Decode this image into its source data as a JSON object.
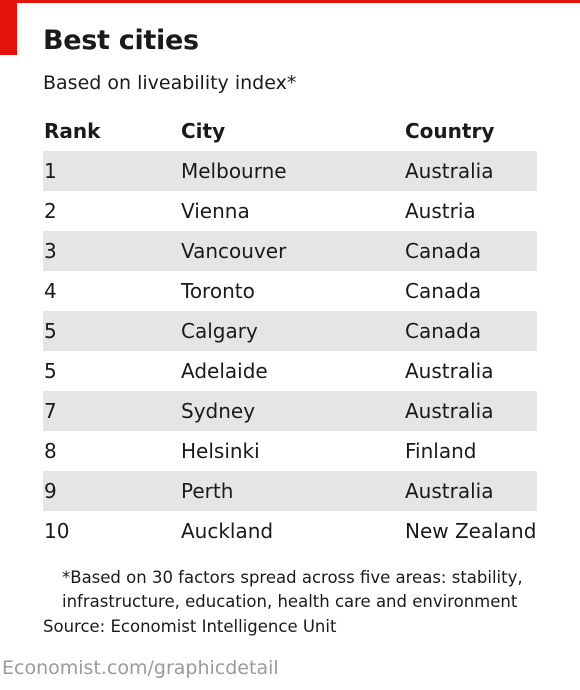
{
  "chart_data": {
    "type": "table",
    "title": "Best cities",
    "subtitle": "Based on liveability index*",
    "columns": [
      "Rank",
      "City",
      "Country"
    ],
    "rows": [
      {
        "rank": "1",
        "city": "Melbourne",
        "country": "Australia"
      },
      {
        "rank": "2",
        "city": "Vienna",
        "country": "Austria"
      },
      {
        "rank": "3",
        "city": "Vancouver",
        "country": "Canada"
      },
      {
        "rank": "4",
        "city": "Toronto",
        "country": "Canada"
      },
      {
        "rank": "5",
        "city": "Calgary",
        "country": "Canada"
      },
      {
        "rank": "5",
        "city": "Adelaide",
        "country": "Australia"
      },
      {
        "rank": "7",
        "city": "Sydney",
        "country": "Australia"
      },
      {
        "rank": "8",
        "city": "Helsinki",
        "country": "Finland"
      },
      {
        "rank": "9",
        "city": "Perth",
        "country": "Australia"
      },
      {
        "rank": "10",
        "city": "Auckland",
        "country": "New Zealand"
      }
    ],
    "footnote_line1": "*Based on 30 factors spread across five areas: stability,",
    "footnote_line2": "infrastructure, education, health care and environment",
    "source": "Source: Economist Intelligence Unit",
    "credit": "Economist.com/graphicdetail"
  },
  "colors": {
    "accent": "#e3120b",
    "row_shade": "#e5e5e5",
    "credit_text": "#9a9a9a"
  }
}
